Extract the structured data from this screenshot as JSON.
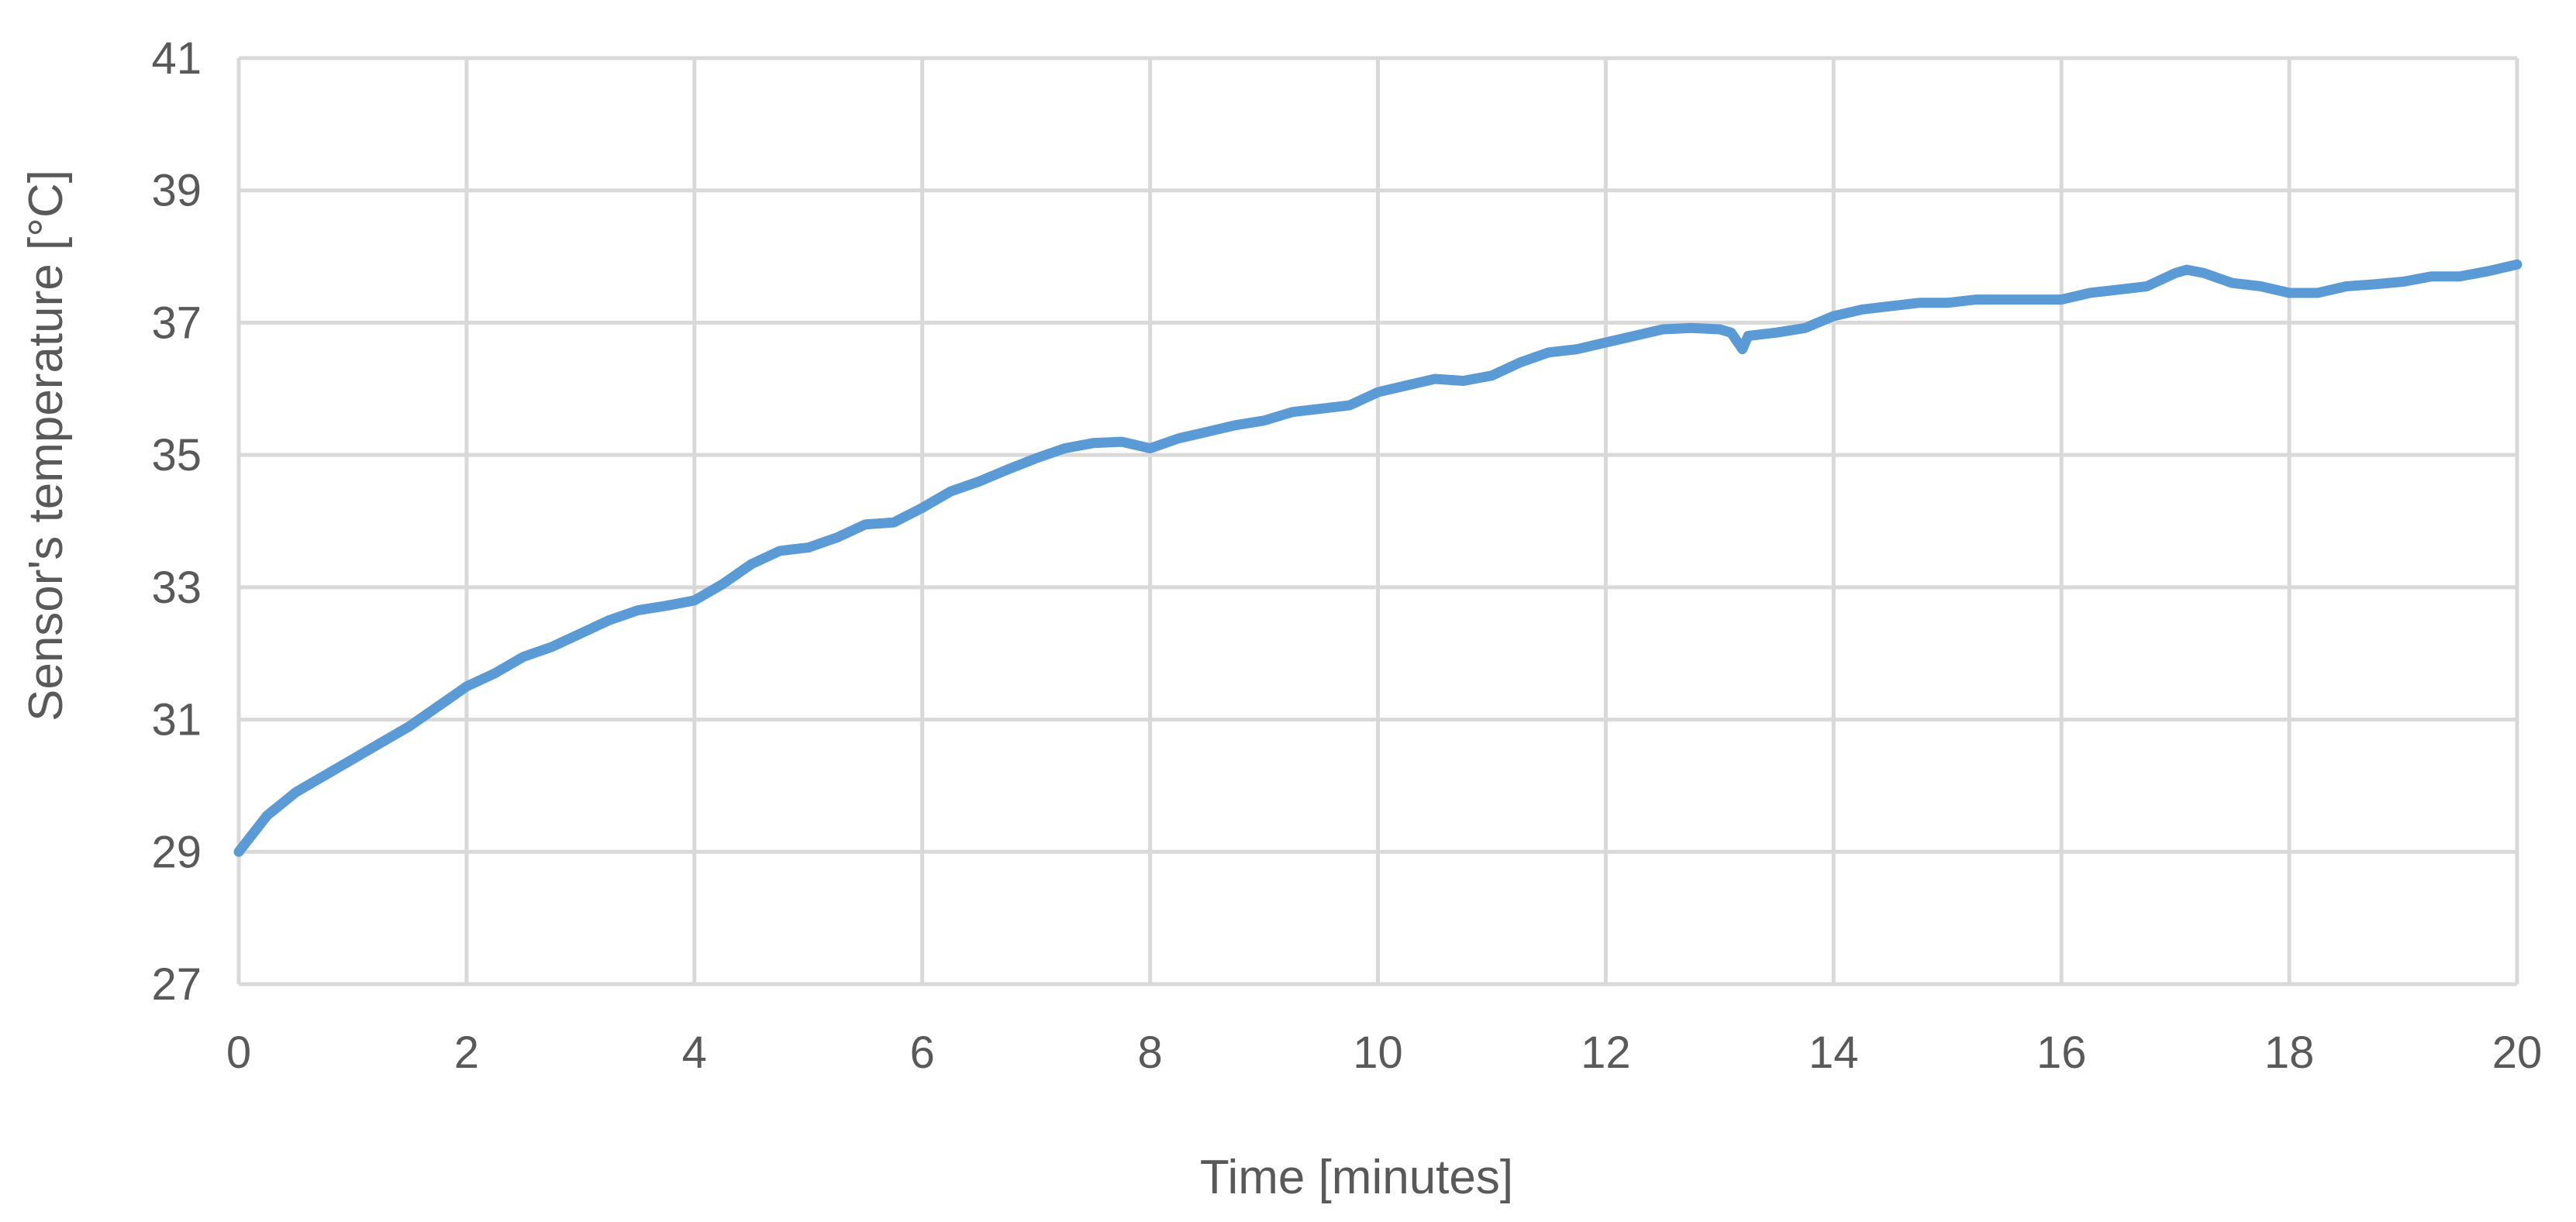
{
  "chart_data": {
    "type": "line",
    "title": "",
    "xlabel": "Time [minutes]",
    "ylabel": "Sensor's temperature [°C]",
    "xlim": [
      0,
      20
    ],
    "ylim": [
      27,
      41
    ],
    "xticks": [
      0,
      2,
      4,
      6,
      8,
      10,
      12,
      14,
      16,
      18,
      20
    ],
    "yticks": [
      27,
      29,
      31,
      33,
      35,
      37,
      39,
      41
    ],
    "grid": true,
    "legend": "none",
    "colors": {
      "series": "#5B9BD5",
      "grid": "#D9D9D9",
      "text": "#595959"
    },
    "series": [
      {
        "x": [
          0,
          0.25,
          0.5,
          0.75,
          1,
          1.25,
          1.5,
          1.75,
          2,
          2.25,
          2.5,
          2.75,
          3,
          3.25,
          3.5,
          3.75,
          4,
          4.25,
          4.5,
          4.75,
          5,
          5.25,
          5.5,
          5.75,
          6,
          6.25,
          6.5,
          6.75,
          7,
          7.25,
          7.5,
          7.75,
          8,
          8.25,
          8.5,
          8.75,
          9,
          9.25,
          9.5,
          9.75,
          10,
          10.25,
          10.5,
          10.75,
          11,
          11.25,
          11.5,
          11.75,
          12,
          12.25,
          12.5,
          12.75,
          13,
          13.1,
          13.2,
          13.25,
          13.5,
          13.75,
          14,
          14.25,
          14.5,
          14.75,
          15,
          15.25,
          15.5,
          15.75,
          16,
          16.25,
          16.5,
          16.75,
          17,
          17.1,
          17.25,
          17.5,
          17.75,
          18,
          18.25,
          18.5,
          18.75,
          19,
          19.25,
          19.5,
          19.75,
          20
        ],
        "values": [
          29.0,
          29.55,
          29.9,
          30.15,
          30.4,
          30.65,
          30.9,
          31.2,
          31.5,
          31.7,
          31.95,
          32.1,
          32.3,
          32.5,
          32.65,
          32.72,
          32.8,
          33.05,
          33.35,
          33.55,
          33.6,
          33.75,
          33.95,
          33.98,
          34.2,
          34.45,
          34.6,
          34.78,
          34.95,
          35.1,
          35.18,
          35.2,
          35.1,
          35.25,
          35.35,
          35.45,
          35.52,
          35.65,
          35.7,
          35.75,
          35.95,
          36.05,
          36.15,
          36.12,
          36.2,
          36.4,
          36.55,
          36.6,
          36.7,
          36.8,
          36.9,
          36.92,
          36.9,
          36.85,
          36.6,
          36.8,
          36.85,
          36.92,
          37.1,
          37.2,
          37.25,
          37.3,
          37.3,
          37.35,
          37.35,
          37.35,
          37.35,
          37.45,
          37.5,
          37.55,
          37.75,
          37.8,
          37.75,
          37.6,
          37.55,
          37.45,
          37.45,
          37.55,
          37.58,
          37.62,
          37.7,
          37.7,
          37.78,
          37.88
        ]
      }
    ]
  }
}
